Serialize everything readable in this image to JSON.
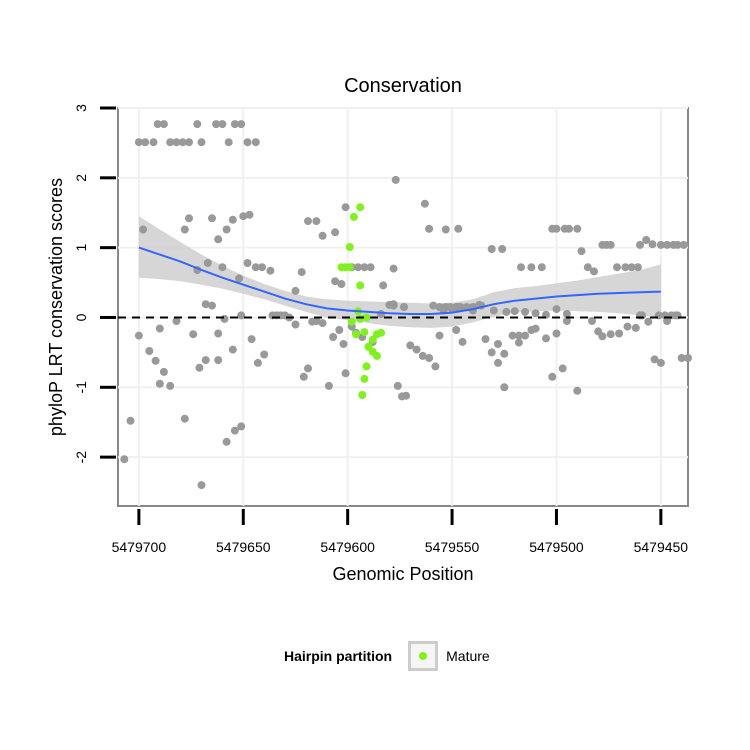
{
  "chart_data": {
    "type": "scatter",
    "title": "Conservation",
    "xlabel": "Genomic Position",
    "ylabel": "phyloP LRT conservation scores",
    "x_reversed": true,
    "xlim": [
      5479710,
      5479437
    ],
    "ylim": [
      -2.7,
      3.0
    ],
    "x_ticks": [
      5479700,
      5479650,
      5479600,
      5479550,
      5479500,
      5479450
    ],
    "x_tick_labels": [
      "5479700",
      "5479650",
      "5479600",
      "5479550",
      "5479500",
      "5479450"
    ],
    "y_ticks": [
      -2,
      -1,
      0,
      1,
      2,
      3
    ],
    "y_tick_labels": [
      "-2",
      "-1",
      "0",
      "1",
      "2",
      "3"
    ],
    "reference_line": 0,
    "colors": {
      "other": "#999999",
      "mature": "#80f020",
      "smooth": "#3366ff",
      "ribbon": "#cccccc",
      "grid": "#f0f0f0"
    },
    "legend": {
      "title": "Hairpin partition",
      "label": "Mature",
      "position": "bottom"
    },
    "series": [
      {
        "name": "other",
        "points": [
          [
            5479700,
            2.51
          ],
          [
            5479697,
            2.51
          ],
          [
            5479693,
            2.51
          ],
          [
            5479691,
            2.77
          ],
          [
            5479688,
            2.77
          ],
          [
            5479685,
            2.51
          ],
          [
            5479682,
            2.51
          ],
          [
            5479679,
            2.51
          ],
          [
            5479676,
            2.51
          ],
          [
            5479672,
            2.77
          ],
          [
            5479670,
            2.51
          ],
          [
            5479663,
            2.77
          ],
          [
            5479660,
            2.77
          ],
          [
            5479657,
            2.51
          ],
          [
            5479654,
            2.77
          ],
          [
            5479651,
            2.77
          ],
          [
            5479648,
            2.51
          ],
          [
            5479644,
            2.51
          ],
          [
            5479698,
            1.26
          ],
          [
            5479678,
            1.26
          ],
          [
            5479676,
            1.42
          ],
          [
            5479665,
            1.42
          ],
          [
            5479662,
            1.12
          ],
          [
            5479658,
            1.26
          ],
          [
            5479655,
            1.4
          ],
          [
            5479650,
            1.45
          ],
          [
            5479647,
            1.47
          ],
          [
            5479619,
            1.38
          ],
          [
            5479615,
            1.38
          ],
          [
            5479612,
            1.17
          ],
          [
            5479606,
            1.22
          ],
          [
            5479601,
            1.58
          ],
          [
            5479577,
            1.97
          ],
          [
            5479563,
            1.63
          ],
          [
            5479672,
            0.68
          ],
          [
            5479667,
            0.78
          ],
          [
            5479660,
            0.72
          ],
          [
            5479652,
            0.56
          ],
          [
            5479648,
            0.78
          ],
          [
            5479644,
            0.72
          ],
          [
            5479641,
            0.72
          ],
          [
            5479637,
            0.67
          ],
          [
            5479625,
            0.38
          ],
          [
            5479622,
            0.65
          ],
          [
            5479606,
            0.52
          ],
          [
            5479603,
            0.48
          ],
          [
            5479598,
            0.72
          ],
          [
            5479595,
            0.72
          ],
          [
            5479592,
            0.72
          ],
          [
            5479589,
            0.72
          ],
          [
            5479578,
            0.7
          ],
          [
            5479583,
            0.46
          ],
          [
            5479578,
            0.17
          ],
          [
            5479573,
            0.15
          ],
          [
            5479700,
            -0.26
          ],
          [
            5479695,
            -0.48
          ],
          [
            5479692,
            -0.62
          ],
          [
            5479690,
            -0.16
          ],
          [
            5479688,
            -0.78
          ],
          [
            5479685,
            -0.98
          ],
          [
            5479682,
            -0.05
          ],
          [
            5479678,
            -1.45
          ],
          [
            5479674,
            -0.24
          ],
          [
            5479671,
            -0.72
          ],
          [
            5479668,
            0.19
          ],
          [
            5479668,
            -0.61
          ],
          [
            5479665,
            0.17
          ],
          [
            5479662,
            -0.23
          ],
          [
            5479659,
            -0.02
          ],
          [
            5479655,
            -0.46
          ],
          [
            5479651,
            0.03
          ],
          [
            5479646,
            -0.31
          ],
          [
            5479643,
            -0.65
          ],
          [
            5479640,
            -0.53
          ],
          [
            5479636,
            0.03
          ],
          [
            5479634,
            0.03
          ],
          [
            5479632,
            0.03
          ],
          [
            5479630,
            0.03
          ],
          [
            5479628,
            0.0
          ],
          [
            5479625,
            -0.1
          ],
          [
            5479621,
            -0.85
          ],
          [
            5479619,
            -0.73
          ],
          [
            5479617,
            -0.06
          ],
          [
            5479615,
            -0.05
          ],
          [
            5479612,
            -0.08
          ],
          [
            5479609,
            -0.98
          ],
          [
            5479607,
            -0.28
          ],
          [
            5479604,
            -0.18
          ],
          [
            5479602,
            -0.38
          ],
          [
            5479598,
            -0.13
          ],
          [
            5479596,
            -0.22
          ],
          [
            5479593,
            -0.28
          ],
          [
            5479588,
            -0.35
          ],
          [
            5479584,
            0.05
          ],
          [
            5479580,
            0.18
          ],
          [
            5479576,
            -0.98
          ],
          [
            5479574,
            -1.13
          ],
          [
            5479572,
            -1.12
          ],
          [
            5479570,
            -0.4
          ],
          [
            5479567,
            -0.46
          ],
          [
            5479564,
            -0.55
          ],
          [
            5479561,
            -0.58
          ],
          [
            5479558,
            -0.7
          ],
          [
            5479556,
            0.15
          ],
          [
            5479553,
            0.15
          ],
          [
            5479551,
            0.15
          ],
          [
            5479548,
            0.15
          ],
          [
            5479546,
            0.15
          ],
          [
            5479543,
            0.15
          ],
          [
            5479540,
            0.15
          ],
          [
            5479537,
            0.18
          ],
          [
            5479534,
            -0.31
          ],
          [
            5479531,
            -0.5
          ],
          [
            5479528,
            -0.65
          ],
          [
            5479525,
            -1.0
          ],
          [
            5479521,
            -0.26
          ],
          [
            5479518,
            -0.36
          ],
          [
            5479515,
            -0.26
          ],
          [
            5479510,
            -0.16
          ],
          [
            5479505,
            -0.3
          ],
          [
            5479500,
            -0.23
          ],
          [
            5479495,
            -0.05
          ],
          [
            5479704,
            -1.48
          ],
          [
            5479707,
            -2.03
          ],
          [
            5479690,
            -0.95
          ],
          [
            5479658,
            -1.78
          ],
          [
            5479654,
            -1.62
          ],
          [
            5479651,
            -1.56
          ],
          [
            5479670,
            -2.4
          ],
          [
            5479662,
            -0.61
          ],
          [
            5479601,
            -0.8
          ],
          [
            5479548,
            -0.18
          ],
          [
            5479556,
            -0.26
          ],
          [
            5479545,
            -0.35
          ],
          [
            5479528,
            -0.38
          ],
          [
            5479525,
            -0.52
          ],
          [
            5479518,
            -0.26
          ],
          [
            5479512,
            -0.18
          ],
          [
            5479502,
            -0.85
          ],
          [
            5479497,
            -0.73
          ],
          [
            5479490,
            -1.05
          ],
          [
            5479578,
            0.19
          ],
          [
            5479559,
            0.17
          ],
          [
            5479554,
            0.1
          ],
          [
            5479550,
            0.12
          ],
          [
            5479547,
            0.15
          ],
          [
            5479540,
            0.1
          ],
          [
            5479536,
            0.17
          ],
          [
            5479530,
            0.1
          ],
          [
            5479524,
            0.08
          ],
          [
            5479520,
            0.09
          ],
          [
            5479515,
            0.08
          ],
          [
            5479510,
            0.06
          ],
          [
            5479505,
            0.04
          ],
          [
            5479500,
            0.12
          ],
          [
            5479495,
            0.05
          ],
          [
            5479561,
            1.27
          ],
          [
            5479553,
            1.26
          ],
          [
            5479547,
            1.27
          ],
          [
            5479531,
            0.98
          ],
          [
            5479526,
            0.98
          ],
          [
            5479517,
            0.72
          ],
          [
            5479512,
            0.72
          ],
          [
            5479507,
            0.72
          ],
          [
            5479502,
            1.27
          ],
          [
            5479500,
            1.27
          ],
          [
            5479496,
            1.27
          ],
          [
            5479494,
            1.27
          ],
          [
            5479490,
            1.27
          ],
          [
            5479488,
            0.95
          ],
          [
            5479485,
            0.72
          ],
          [
            5479482,
            0.66
          ],
          [
            5479478,
            1.04
          ],
          [
            5479476,
            1.04
          ],
          [
            5479474,
            1.04
          ],
          [
            5479471,
            0.72
          ],
          [
            5479467,
            0.72
          ],
          [
            5479464,
            0.72
          ],
          [
            5479461,
            0.72
          ],
          [
            5479457,
            1.11
          ],
          [
            5479454,
            1.05
          ],
          [
            5479450,
            1.04
          ],
          [
            5479447,
            1.04
          ],
          [
            5479444,
            1.04
          ],
          [
            5479442,
            1.04
          ],
          [
            5479439,
            1.04
          ],
          [
            5479436,
            1.04
          ],
          [
            5479433,
            1.04
          ],
          [
            5479430,
            1.04
          ],
          [
            5479460,
            1.04
          ],
          [
            5479483,
            -0.05
          ],
          [
            5479480,
            -0.2
          ],
          [
            5479478,
            -0.27
          ],
          [
            5479474,
            -0.24
          ],
          [
            5479470,
            -0.23
          ],
          [
            5479466,
            -0.13
          ],
          [
            5479462,
            -0.15
          ],
          [
            5479459,
            0.03
          ],
          [
            5479456,
            -0.06
          ],
          [
            5479453,
            -0.6
          ],
          [
            5479450,
            -0.65
          ],
          [
            5479447,
            -0.05
          ],
          [
            5479443,
            0.03
          ],
          [
            5479440,
            -0.58
          ],
          [
            5479437,
            -0.58
          ],
          [
            5479434,
            -0.62
          ],
          [
            5479431,
            -0.06
          ],
          [
            5479428,
            -0.65
          ],
          [
            5479425,
            0.03
          ],
          [
            5479451,
            0.03
          ],
          [
            5479448,
            0.03
          ],
          [
            5479445,
            0.03
          ],
          [
            5479442,
            0.03
          ],
          [
            5479460,
            0.03
          ]
        ]
      },
      {
        "name": "Mature",
        "points": [
          [
            5479594,
            1.58
          ],
          [
            5479597,
            1.44
          ],
          [
            5479599,
            1.01
          ],
          [
            5479603,
            0.72
          ],
          [
            5479601,
            0.72
          ],
          [
            5479599,
            0.72
          ],
          [
            5479594,
            0.46
          ],
          [
            5479595,
            0.09
          ],
          [
            5479591,
            0.0
          ],
          [
            5479594,
            -0.02
          ],
          [
            5479598,
            -0.06
          ],
          [
            5479596,
            -0.24
          ],
          [
            5479592,
            -0.21
          ],
          [
            5479590,
            -0.42
          ],
          [
            5479588,
            -0.49
          ],
          [
            5479586,
            -0.55
          ],
          [
            5479584,
            -0.22
          ],
          [
            5479586,
            -0.24
          ],
          [
            5479588,
            -0.32
          ],
          [
            5479591,
            -0.7
          ],
          [
            5479592,
            -0.88
          ],
          [
            5479593,
            -1.11
          ]
        ]
      }
    ],
    "smooth": {
      "x": [
        5479700,
        5479690,
        5479680,
        5479670,
        5479660,
        5479650,
        5479640,
        5479630,
        5479620,
        5479610,
        5479600,
        5479590,
        5479580,
        5479570,
        5479560,
        5479550,
        5479540,
        5479530,
        5479520,
        5479510,
        5479500,
        5479490,
        5479480,
        5479470,
        5479460,
        5479450
      ],
      "y": [
        1.0,
        0.9,
        0.8,
        0.68,
        0.57,
        0.47,
        0.37,
        0.27,
        0.19,
        0.13,
        0.1,
        0.08,
        0.06,
        0.05,
        0.05,
        0.07,
        0.12,
        0.19,
        0.24,
        0.27,
        0.3,
        0.32,
        0.34,
        0.35,
        0.36,
        0.37
      ],
      "lower": [
        0.57,
        0.55,
        0.52,
        0.47,
        0.41,
        0.34,
        0.26,
        0.17,
        0.08,
        0.0,
        -0.04,
        -0.08,
        -0.12,
        -0.14,
        -0.15,
        -0.13,
        -0.07,
        0.01,
        0.07,
        0.09,
        0.1,
        0.09,
        0.08,
        0.06,
        0.03,
        0.0
      ],
      "upper": [
        1.45,
        1.26,
        1.08,
        0.9,
        0.74,
        0.6,
        0.48,
        0.38,
        0.3,
        0.26,
        0.24,
        0.23,
        0.22,
        0.21,
        0.2,
        0.21,
        0.26,
        0.36,
        0.42,
        0.45,
        0.49,
        0.53,
        0.58,
        0.63,
        0.68,
        0.76
      ]
    }
  }
}
